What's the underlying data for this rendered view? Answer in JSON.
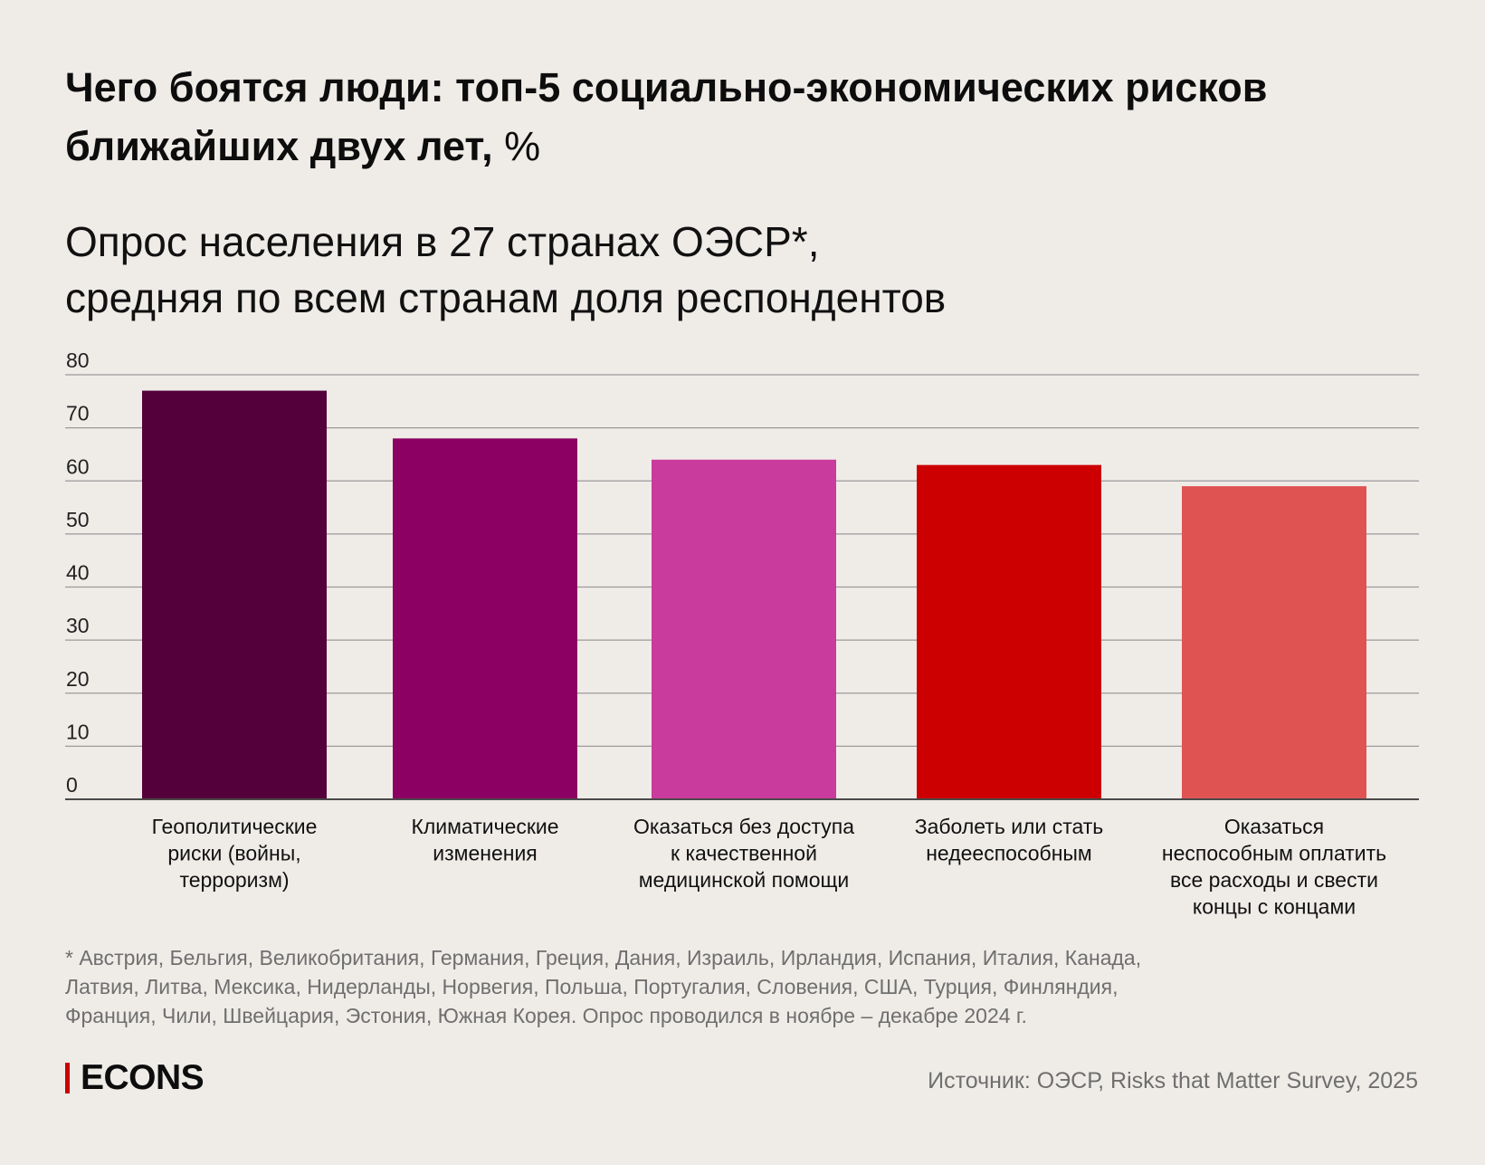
{
  "title": {
    "main": "Чего боятся люди: топ-5 социально-экономических рисков ближайших двух лет,",
    "unit": "%"
  },
  "subtitle": {
    "line1": "Опрос населения в 27 странах ОЭСР*,",
    "line2": "средняя по всем странам доля респондентов"
  },
  "chart_data": {
    "type": "bar",
    "categories": [
      [
        "Геополитические",
        "риски (войны,",
        "терроризм)"
      ],
      [
        "Климатические",
        "изменения"
      ],
      [
        "Оказаться без доступа",
        "к качественной",
        "медицинской помощи"
      ],
      [
        "Заболеть или стать",
        "недееспособным"
      ],
      [
        "Оказаться",
        "неспособным оплатить",
        "все расходы и свести",
        "концы с концами"
      ]
    ],
    "values": [
      77,
      68,
      64,
      63,
      59
    ],
    "colors": [
      "#54003a",
      "#8b0062",
      "#c93b9c",
      "#cc0000",
      "#e05353"
    ],
    "ylim": [
      0,
      80
    ],
    "yticks": [
      0,
      10,
      20,
      30,
      40,
      50,
      60,
      70,
      80
    ],
    "grid": true,
    "gridColor": "#9a9a9a",
    "axisColor": "#4a4a4a"
  },
  "footnote": {
    "line1": "* Австрия, Бельгия, Великобритания, Германия, Греция, Дания, Израиль, Ирландия, Испания, Италия, Канада,",
    "line2": "Латвия, Литва, Мексика, Нидерланды, Норвегия, Польша, Португалия, Словения, США, Турция, Финляндия,",
    "line3": "Франция, Чили, Швейцария, Эстония, Южная Корея. Опрос проводился в ноябре – декабре 2024 г."
  },
  "logo": {
    "text": "ECONS",
    "accent": "#cc0000"
  },
  "source": "Источник: ОЭСР, Risks that Matter Survey, 2025"
}
